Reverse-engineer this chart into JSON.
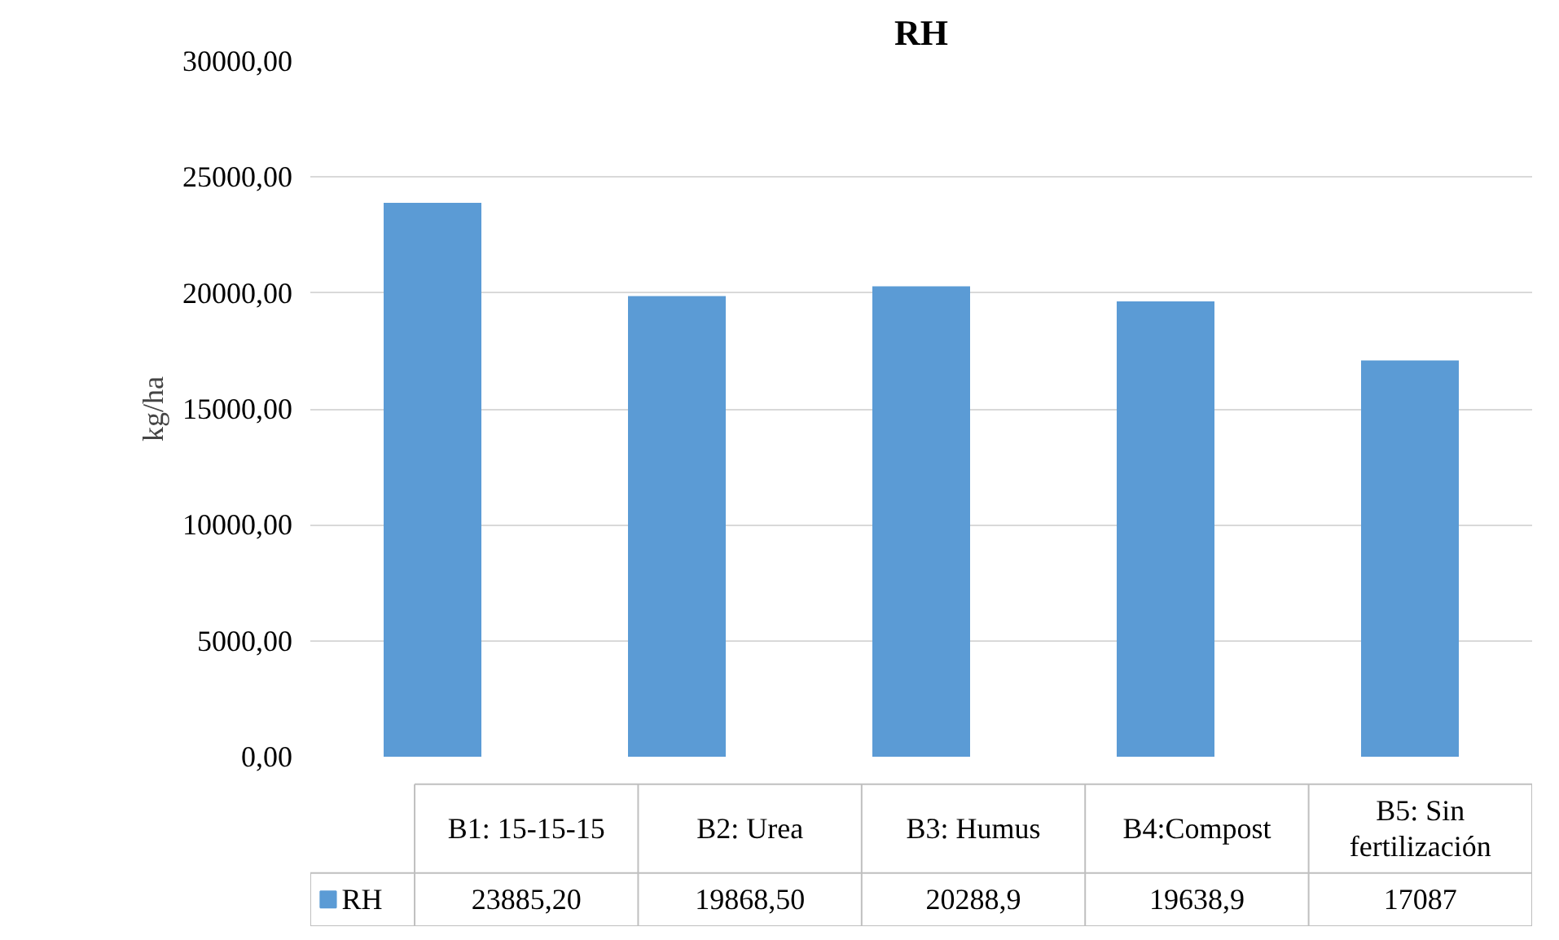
{
  "chart_data": {
    "type": "bar",
    "title": "RH",
    "ylabel": "kg/ha",
    "categories": [
      "B1: 15-15-15",
      "B2: Urea",
      "B3: Humus",
      "B4:Compost",
      "B5: Sin fertilización"
    ],
    "series": [
      {
        "name": "RH",
        "color": "#5b9bd5",
        "values": [
          23885.2,
          19868.5,
          20288.9,
          19638.9,
          17087
        ],
        "value_labels": [
          "23885,20",
          "19868,50",
          "20288,9",
          "19638,9",
          "17087"
        ]
      }
    ],
    "ylim": [
      0,
      30000
    ],
    "yticks": [
      {
        "value": 0,
        "label": "0,00"
      },
      {
        "value": 5000,
        "label": "5000,00"
      },
      {
        "value": 10000,
        "label": "10000,00"
      },
      {
        "value": 15000,
        "label": "15000,00"
      },
      {
        "value": 20000,
        "label": "20000,00"
      },
      {
        "value": 25000,
        "label": "25000,00"
      },
      {
        "value": 30000,
        "label": "30000,00"
      }
    ],
    "grid": "y",
    "legend": "bottom"
  }
}
